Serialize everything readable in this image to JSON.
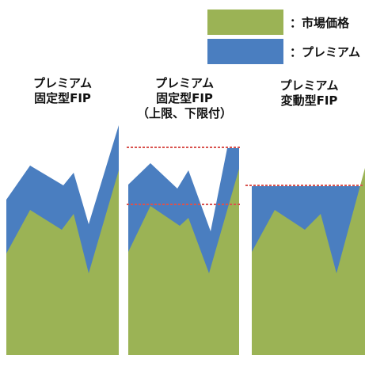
{
  "legend": {
    "market_label": "：市場価格",
    "premium_label": "：プレミアム"
  },
  "panels": [
    {
      "title_lines": [
        "プレミアム",
        "固定型FIP"
      ]
    },
    {
      "title_lines": [
        "プレミアム",
        "固定型FIP",
        "（上限、下限付）"
      ]
    },
    {
      "title_lines": [
        "プレミアム",
        "変動型FIP"
      ]
    }
  ],
  "colors": {
    "market": "#9bb355",
    "premium": "#4a7ec0",
    "limit_line": "#d9534f"
  }
}
